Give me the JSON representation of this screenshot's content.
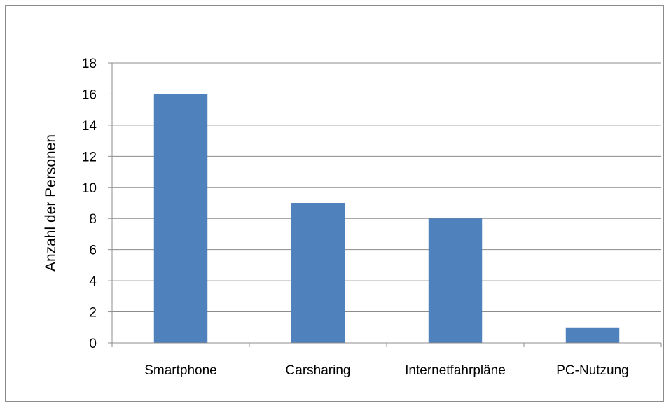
{
  "chart_data": {
    "type": "bar",
    "categories": [
      "Smartphone",
      "Carsharing",
      "Internetfahrpläne",
      "PC-Nutzung"
    ],
    "values": [
      16,
      9,
      8,
      1
    ],
    "title": "",
    "xlabel": "",
    "ylabel": "Anzahl der Personen",
    "ylim": [
      0,
      18
    ],
    "yticks": [
      0,
      2,
      4,
      6,
      8,
      10,
      12,
      14,
      16,
      18
    ],
    "grid": true,
    "legend": "none",
    "bar_color": "#4f81bd"
  }
}
